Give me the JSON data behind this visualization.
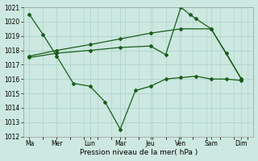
{
  "xlabel": "Pression niveau de la mer( hPa )",
  "ylim": [
    1012,
    1021
  ],
  "yticks": [
    1012,
    1013,
    1014,
    1015,
    1016,
    1017,
    1018,
    1019,
    1020,
    1021
  ],
  "xtick_labels": [
    "Ma",
    "Mer",
    "Lun",
    "Mar",
    "Jeu",
    "Ven",
    "Sam",
    "Dim"
  ],
  "xtick_positions": [
    0,
    0.9,
    2.0,
    3.0,
    4.0,
    5.0,
    6.0,
    7.0
  ],
  "bg_color": "#cce8e0",
  "line_color": "#1a5c1a",
  "grid_color": "#aacfc8",
  "series1_x": [
    0,
    0.45,
    0.9,
    1.45,
    2.0,
    2.5,
    3.0,
    3.5,
    4.0,
    4.5,
    5.0,
    5.5,
    6.0,
    6.5,
    7.0
  ],
  "series1_y": [
    1020.5,
    1019.1,
    1017.6,
    1015.7,
    1015.5,
    1014.4,
    1012.5,
    1015.2,
    1015.5,
    1016.0,
    1016.1,
    1016.2,
    1016.0,
    1016.0,
    1015.9
  ],
  "series2_x": [
    0,
    0.9,
    2.0,
    3.0,
    4.0,
    5.0,
    6.0,
    7.0
  ],
  "series2_y": [
    1017.6,
    1018.0,
    1018.4,
    1018.8,
    1019.2,
    1019.5,
    1019.5,
    1016.0
  ],
  "series3_x": [
    0,
    0.9,
    2.0,
    3.0,
    4.0,
    4.5,
    5.0,
    5.3,
    5.5,
    6.0,
    6.5,
    7.0
  ],
  "series3_y": [
    1017.5,
    1017.8,
    1018.0,
    1018.2,
    1018.3,
    1017.7,
    1021.0,
    1020.5,
    1020.2,
    1019.5,
    1017.8,
    1016.0
  ],
  "xlabel_fontsize": 6.5,
  "tick_fontsize": 5.5
}
